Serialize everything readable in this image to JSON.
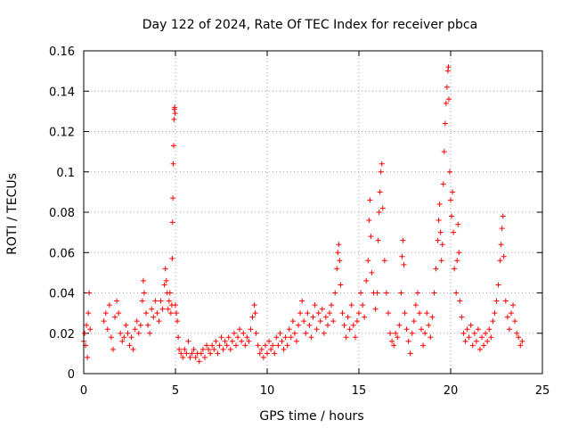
{
  "chart_data": {
    "type": "scatter",
    "title": "Day 122 of 2024, Rate Of TEC Index for receiver pbca",
    "xlabel": "GPS time / hours",
    "ylabel": "ROTI / TECUs",
    "xlim": [
      0,
      25
    ],
    "ylim": [
      0,
      0.16
    ],
    "x_ticks": [
      0,
      5,
      10,
      15,
      20,
      25
    ],
    "y_ticks": [
      0,
      0.02,
      0.04,
      0.06,
      0.08,
      0.1,
      0.12,
      0.14,
      0.16
    ],
    "x_tick_labels": [
      "0",
      "5",
      "10",
      "15",
      "20",
      "25"
    ],
    "y_tick_labels": [
      "0",
      "0.02",
      "0.04",
      "0.06",
      "0.08",
      "0.1",
      "0.12",
      "0.14",
      "0.16"
    ],
    "grid": true,
    "marker": "+",
    "marker_color": "#ff0000",
    "series": [
      {
        "points": [
          [
            0.0,
            0.016
          ],
          [
            0.05,
            0.02
          ],
          [
            0.1,
            0.014
          ],
          [
            0.15,
            0.024
          ],
          [
            0.2,
            0.008
          ],
          [
            0.25,
            0.03
          ],
          [
            0.3,
            0.04
          ],
          [
            0.35,
            0.022
          ],
          [
            1.1,
            0.026
          ],
          [
            1.2,
            0.03
          ],
          [
            1.3,
            0.022
          ],
          [
            1.4,
            0.034
          ],
          [
            1.5,
            0.018
          ],
          [
            1.6,
            0.012
          ],
          [
            1.7,
            0.028
          ],
          [
            1.8,
            0.036
          ],
          [
            1.9,
            0.03
          ],
          [
            2.0,
            0.02
          ],
          [
            2.1,
            0.016
          ],
          [
            2.2,
            0.018
          ],
          [
            2.3,
            0.024
          ],
          [
            2.4,
            0.02
          ],
          [
            2.5,
            0.014
          ],
          [
            2.6,
            0.018
          ],
          [
            2.7,
            0.012
          ],
          [
            2.8,
            0.022
          ],
          [
            2.9,
            0.026
          ],
          [
            3.0,
            0.02
          ],
          [
            3.1,
            0.024
          ],
          [
            3.2,
            0.036
          ],
          [
            3.25,
            0.046
          ],
          [
            3.3,
            0.04
          ],
          [
            3.4,
            0.03
          ],
          [
            3.5,
            0.024
          ],
          [
            3.6,
            0.02
          ],
          [
            3.7,
            0.032
          ],
          [
            3.8,
            0.028
          ],
          [
            3.9,
            0.036
          ],
          [
            4.0,
            0.03
          ],
          [
            4.1,
            0.026
          ],
          [
            4.2,
            0.036
          ],
          [
            4.3,
            0.032
          ],
          [
            4.4,
            0.044
          ],
          [
            4.45,
            0.052
          ],
          [
            4.5,
            0.046
          ],
          [
            4.55,
            0.04
          ],
          [
            4.6,
            0.032
          ],
          [
            4.65,
            0.036
          ],
          [
            4.7,
            0.04
          ],
          [
            4.75,
            0.03
          ],
          [
            4.8,
            0.034
          ],
          [
            4.82,
            0.057
          ],
          [
            4.84,
            0.075
          ],
          [
            4.86,
            0.087
          ],
          [
            4.88,
            0.104
          ],
          [
            4.9,
            0.113
          ],
          [
            4.92,
            0.126
          ],
          [
            4.94,
            0.131
          ],
          [
            4.96,
            0.132
          ],
          [
            4.98,
            0.129
          ],
          [
            5.0,
            0.034
          ],
          [
            5.05,
            0.03
          ],
          [
            5.1,
            0.026
          ],
          [
            5.15,
            0.018
          ],
          [
            5.2,
            0.012
          ],
          [
            5.3,
            0.01
          ],
          [
            5.4,
            0.008
          ],
          [
            5.5,
            0.012
          ],
          [
            5.6,
            0.01
          ],
          [
            5.7,
            0.016
          ],
          [
            5.8,
            0.008
          ],
          [
            5.9,
            0.01
          ],
          [
            6.0,
            0.012
          ],
          [
            6.1,
            0.008
          ],
          [
            6.2,
            0.01
          ],
          [
            6.3,
            0.006
          ],
          [
            6.4,
            0.01
          ],
          [
            6.5,
            0.012
          ],
          [
            6.6,
            0.008
          ],
          [
            6.7,
            0.014
          ],
          [
            6.8,
            0.012
          ],
          [
            6.9,
            0.01
          ],
          [
            7.0,
            0.014
          ],
          [
            7.1,
            0.012
          ],
          [
            7.2,
            0.016
          ],
          [
            7.3,
            0.01
          ],
          [
            7.4,
            0.014
          ],
          [
            7.5,
            0.018
          ],
          [
            7.6,
            0.012
          ],
          [
            7.7,
            0.016
          ],
          [
            7.8,
            0.014
          ],
          [
            7.9,
            0.018
          ],
          [
            8.0,
            0.012
          ],
          [
            8.1,
            0.016
          ],
          [
            8.2,
            0.02
          ],
          [
            8.3,
            0.014
          ],
          [
            8.4,
            0.018
          ],
          [
            8.5,
            0.022
          ],
          [
            8.6,
            0.016
          ],
          [
            8.7,
            0.02
          ],
          [
            8.8,
            0.014
          ],
          [
            8.9,
            0.018
          ],
          [
            9.0,
            0.016
          ],
          [
            9.1,
            0.022
          ],
          [
            9.2,
            0.028
          ],
          [
            9.3,
            0.034
          ],
          [
            9.35,
            0.03
          ],
          [
            9.4,
            0.02
          ],
          [
            9.5,
            0.014
          ],
          [
            9.6,
            0.01
          ],
          [
            9.7,
            0.012
          ],
          [
            9.8,
            0.008
          ],
          [
            9.9,
            0.014
          ],
          [
            10.0,
            0.01
          ],
          [
            10.1,
            0.016
          ],
          [
            10.2,
            0.012
          ],
          [
            10.3,
            0.014
          ],
          [
            10.4,
            0.01
          ],
          [
            10.5,
            0.018
          ],
          [
            10.6,
            0.014
          ],
          [
            10.7,
            0.02
          ],
          [
            10.8,
            0.016
          ],
          [
            10.9,
            0.012
          ],
          [
            11.0,
            0.018
          ],
          [
            11.1,
            0.014
          ],
          [
            11.2,
            0.022
          ],
          [
            11.3,
            0.018
          ],
          [
            11.4,
            0.026
          ],
          [
            11.5,
            0.02
          ],
          [
            11.6,
            0.016
          ],
          [
            11.7,
            0.024
          ],
          [
            11.8,
            0.03
          ],
          [
            11.9,
            0.036
          ],
          [
            12.0,
            0.026
          ],
          [
            12.1,
            0.02
          ],
          [
            12.2,
            0.03
          ],
          [
            12.3,
            0.024
          ],
          [
            12.4,
            0.018
          ],
          [
            12.5,
            0.028
          ],
          [
            12.6,
            0.034
          ],
          [
            12.7,
            0.022
          ],
          [
            12.8,
            0.03
          ],
          [
            12.9,
            0.026
          ],
          [
            13.0,
            0.032
          ],
          [
            13.1,
            0.02
          ],
          [
            13.2,
            0.028
          ],
          [
            13.3,
            0.024
          ],
          [
            13.4,
            0.03
          ],
          [
            13.5,
            0.034
          ],
          [
            13.6,
            0.026
          ],
          [
            13.7,
            0.04
          ],
          [
            13.8,
            0.052
          ],
          [
            13.85,
            0.06
          ],
          [
            13.9,
            0.064
          ],
          [
            13.95,
            0.056
          ],
          [
            14.0,
            0.044
          ],
          [
            14.1,
            0.03
          ],
          [
            14.2,
            0.024
          ],
          [
            14.3,
            0.018
          ],
          [
            14.4,
            0.028
          ],
          [
            14.5,
            0.022
          ],
          [
            14.6,
            0.034
          ],
          [
            14.7,
            0.024
          ],
          [
            14.8,
            0.018
          ],
          [
            14.9,
            0.026
          ],
          [
            15.0,
            0.03
          ],
          [
            15.1,
            0.04
          ],
          [
            15.2,
            0.034
          ],
          [
            15.3,
            0.028
          ],
          [
            15.4,
            0.046
          ],
          [
            15.5,
            0.056
          ],
          [
            15.55,
            0.076
          ],
          [
            15.6,
            0.086
          ],
          [
            15.65,
            0.068
          ],
          [
            15.7,
            0.05
          ],
          [
            15.8,
            0.04
          ],
          [
            15.9,
            0.032
          ],
          [
            16.0,
            0.04
          ],
          [
            16.05,
            0.066
          ],
          [
            16.1,
            0.08
          ],
          [
            16.15,
            0.09
          ],
          [
            16.2,
            0.1
          ],
          [
            16.25,
            0.104
          ],
          [
            16.3,
            0.082
          ],
          [
            16.4,
            0.056
          ],
          [
            16.5,
            0.04
          ],
          [
            16.6,
            0.03
          ],
          [
            16.7,
            0.02
          ],
          [
            16.8,
            0.016
          ],
          [
            16.9,
            0.014
          ],
          [
            17.0,
            0.02
          ],
          [
            17.1,
            0.018
          ],
          [
            17.2,
            0.024
          ],
          [
            17.3,
            0.04
          ],
          [
            17.35,
            0.058
          ],
          [
            17.4,
            0.066
          ],
          [
            17.45,
            0.054
          ],
          [
            17.5,
            0.03
          ],
          [
            17.6,
            0.022
          ],
          [
            17.7,
            0.016
          ],
          [
            17.8,
            0.01
          ],
          [
            17.9,
            0.02
          ],
          [
            18.0,
            0.026
          ],
          [
            18.1,
            0.034
          ],
          [
            18.2,
            0.04
          ],
          [
            18.3,
            0.03
          ],
          [
            18.4,
            0.022
          ],
          [
            18.5,
            0.014
          ],
          [
            18.6,
            0.02
          ],
          [
            18.7,
            0.03
          ],
          [
            18.8,
            0.024
          ],
          [
            18.9,
            0.018
          ],
          [
            19.0,
            0.028
          ],
          [
            19.1,
            0.04
          ],
          [
            19.2,
            0.052
          ],
          [
            19.3,
            0.066
          ],
          [
            19.35,
            0.076
          ],
          [
            19.4,
            0.084
          ],
          [
            19.45,
            0.07
          ],
          [
            19.5,
            0.056
          ],
          [
            19.55,
            0.064
          ],
          [
            19.6,
            0.094
          ],
          [
            19.65,
            0.11
          ],
          [
            19.7,
            0.124
          ],
          [
            19.75,
            0.134
          ],
          [
            19.8,
            0.142
          ],
          [
            19.85,
            0.15
          ],
          [
            19.88,
            0.152
          ],
          [
            19.9,
            0.136
          ],
          [
            19.95,
            0.1
          ],
          [
            20.0,
            0.086
          ],
          [
            20.05,
            0.078
          ],
          [
            20.1,
            0.09
          ],
          [
            20.15,
            0.07
          ],
          [
            20.2,
            0.052
          ],
          [
            20.3,
            0.04
          ],
          [
            20.35,
            0.056
          ],
          [
            20.4,
            0.074
          ],
          [
            20.45,
            0.06
          ],
          [
            20.5,
            0.036
          ],
          [
            20.6,
            0.028
          ],
          [
            20.7,
            0.02
          ],
          [
            20.8,
            0.016
          ],
          [
            20.9,
            0.022
          ],
          [
            21.0,
            0.018
          ],
          [
            21.1,
            0.024
          ],
          [
            21.2,
            0.014
          ],
          [
            21.3,
            0.02
          ],
          [
            21.4,
            0.016
          ],
          [
            21.5,
            0.022
          ],
          [
            21.6,
            0.012
          ],
          [
            21.7,
            0.018
          ],
          [
            21.8,
            0.014
          ],
          [
            21.9,
            0.02
          ],
          [
            22.0,
            0.016
          ],
          [
            22.1,
            0.022
          ],
          [
            22.2,
            0.018
          ],
          [
            22.3,
            0.026
          ],
          [
            22.4,
            0.03
          ],
          [
            22.5,
            0.036
          ],
          [
            22.6,
            0.044
          ],
          [
            22.7,
            0.056
          ],
          [
            22.75,
            0.064
          ],
          [
            22.8,
            0.072
          ],
          [
            22.85,
            0.078
          ],
          [
            22.9,
            0.058
          ],
          [
            23.0,
            0.036
          ],
          [
            23.1,
            0.028
          ],
          [
            23.2,
            0.022
          ],
          [
            23.3,
            0.03
          ],
          [
            23.4,
            0.034
          ],
          [
            23.5,
            0.026
          ],
          [
            23.6,
            0.02
          ],
          [
            23.7,
            0.018
          ],
          [
            23.8,
            0.014
          ],
          [
            23.9,
            0.016
          ]
        ]
      }
    ]
  }
}
